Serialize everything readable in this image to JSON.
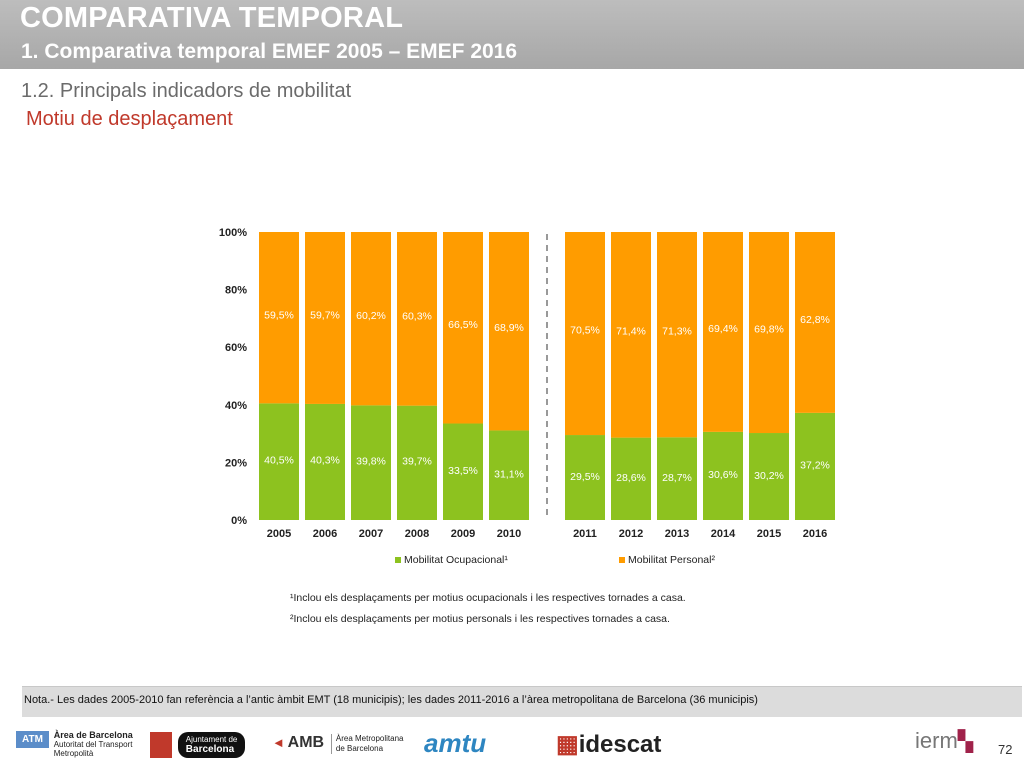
{
  "header": {
    "title": "COMPARATIVA TEMPORAL",
    "subtitle": "1. Comparativa temporal EMEF 2005 – EMEF 2016"
  },
  "section": {
    "title": "1.2. Principals indicadors de mobilitat",
    "subtitle": "Motiu de desplaçament"
  },
  "colors": {
    "ocupacional": "#8dc21f",
    "personal": "#ff9c00",
    "label": "#ffffff"
  },
  "chart_data": {
    "type": "bar",
    "stacked": true,
    "title": "",
    "xlabel": "",
    "ylabel": "",
    "ylim": [
      0,
      100
    ],
    "yticks": [
      "0%",
      "20%",
      "40%",
      "60%",
      "80%",
      "100%"
    ],
    "categories": [
      "2005",
      "2006",
      "2007",
      "2008",
      "2009",
      "2010",
      "2011",
      "2012",
      "2013",
      "2014",
      "2015",
      "2016"
    ],
    "series": [
      {
        "name": "Mobilitat Ocupacional¹",
        "values": [
          40.5,
          40.3,
          39.8,
          39.7,
          33.5,
          31.1,
          29.5,
          28.6,
          28.7,
          30.6,
          30.2,
          37.2
        ],
        "labels": [
          "40,5%",
          "40,3%",
          "39,8%",
          "39,7%",
          "33,5%",
          "31,1%",
          "29,5%",
          "28,6%",
          "28,7%",
          "30,6%",
          "30,2%",
          "37,2%"
        ]
      },
      {
        "name": "Mobilitat Personal²",
        "values": [
          59.5,
          59.7,
          60.2,
          60.3,
          66.5,
          68.9,
          70.5,
          71.4,
          71.3,
          69.4,
          69.8,
          62.8
        ],
        "labels": [
          "59,5%",
          "59,7%",
          "60,2%",
          "60,3%",
          "66,5%",
          "68,9%",
          "70,5%",
          "71,4%",
          "71,3%",
          "69,4%",
          "69,8%",
          "62,8%"
        ]
      }
    ],
    "divider_after_category": "2010",
    "legend_position": "bottom"
  },
  "footnotes": [
    "¹Inclou els desplaçaments per motius ocupacionals i les respectives tornades a casa.",
    "²Inclou els desplaçaments per motius personals i les respectives tornades a casa."
  ],
  "note": "Nota.- Les dades 2005-2010 fan referència a l’antic àmbit EMT (18 municipis); les dades 2011-2016 a l’àrea metropolitana de Barcelona (36 municipis)",
  "logos": {
    "atm_badge": "ATM",
    "atm_line1": "Àrea de Barcelona",
    "atm_line2": "Autoritat del Transport",
    "atm_line3": "Metropolità",
    "ajuntament_line1": "Ajuntament de",
    "ajuntament_line2": "Barcelona",
    "amb": "AMB",
    "amb_line1": "Àrea Metropolitana",
    "amb_line2": "de Barcelona",
    "amtu": "amtu",
    "idescat": "idescat",
    "ierm": "ierm"
  },
  "page_number": "72"
}
